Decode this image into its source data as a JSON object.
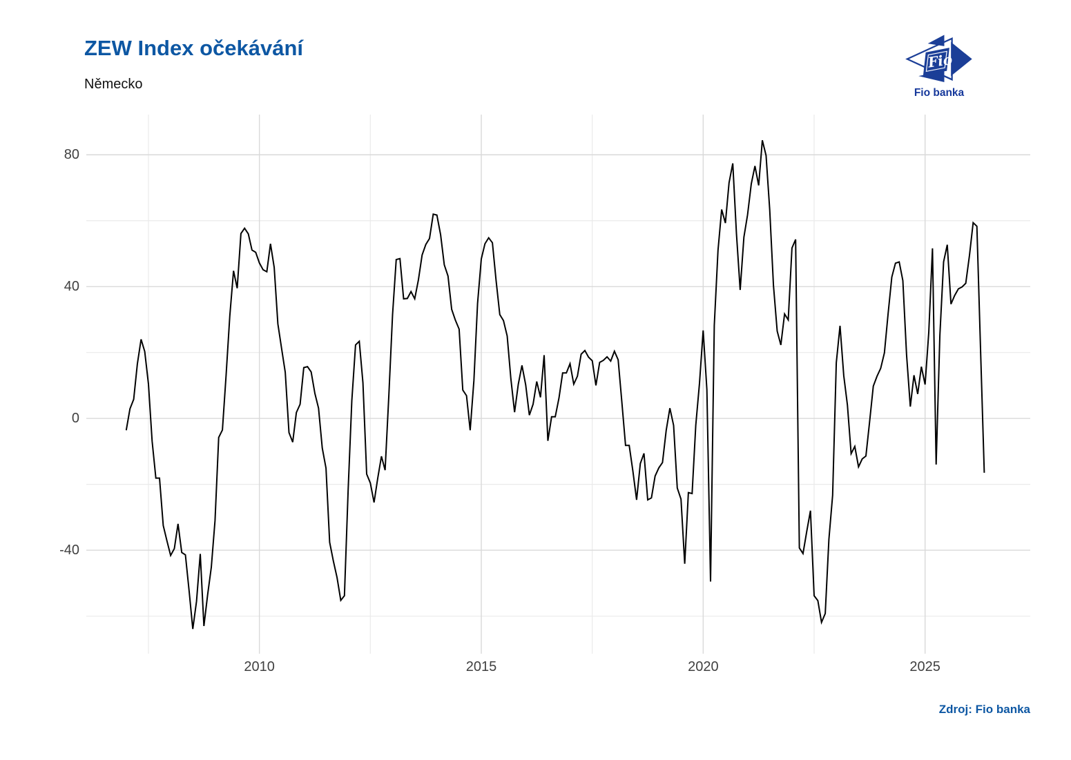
{
  "header": {
    "title": "ZEW Index očekávání",
    "subtitle": "Německo"
  },
  "logo": {
    "text": "Fio",
    "label": "Fio banka"
  },
  "footer": {
    "source": "Zdroj: Fio banka"
  },
  "colors": {
    "accent_blue": "#0d57a3",
    "logo_navy": "#1b3e97",
    "line": "#000000",
    "grid_major": "#d9d9d9",
    "grid_minor": "#eaeaea",
    "tick_text": "#404040",
    "background": "#ffffff"
  },
  "chart_data": {
    "type": "line",
    "title": "ZEW Index očekávání",
    "subtitle": "Německo",
    "xlabel": "",
    "ylabel": "",
    "grid": true,
    "legend": false,
    "xlim": [
      2006.1,
      2027.37
    ],
    "ylim": [
      -71.4,
      92.2
    ],
    "x_ticks": [
      {
        "value": 2010,
        "label": "2010"
      },
      {
        "value": 2015,
        "label": "2015"
      },
      {
        "value": 2020,
        "label": "2020"
      },
      {
        "value": 2025,
        "label": "2025"
      }
    ],
    "x_minor": [
      2007.5,
      2012.5,
      2017.5,
      2022.5
    ],
    "y_ticks": [
      {
        "value": 80,
        "label": "80"
      },
      {
        "value": 40,
        "label": "40"
      },
      {
        "value": 0,
        "label": "0"
      },
      {
        "value": -40,
        "label": "-40"
      }
    ],
    "y_minor": [
      60,
      20,
      -20,
      -60
    ],
    "series": [
      {
        "name": "ZEW Index očekávání (Německo)",
        "points": [
          [
            "2007-01",
            -3.6
          ],
          [
            "2007-02",
            2.9
          ],
          [
            "2007-03",
            5.8
          ],
          [
            "2007-04",
            16.5
          ],
          [
            "2007-05",
            24.0
          ],
          [
            "2007-06",
            20.3
          ],
          [
            "2007-07",
            10.4
          ],
          [
            "2007-08",
            -6.9
          ],
          [
            "2007-09",
            -18.1
          ],
          [
            "2007-10",
            -18.1
          ],
          [
            "2007-11",
            -32.5
          ],
          [
            "2007-12",
            -37.2
          ],
          [
            "2008-01",
            -41.6
          ],
          [
            "2008-02",
            -39.5
          ],
          [
            "2008-03",
            -32.0
          ],
          [
            "2008-04",
            -40.7
          ],
          [
            "2008-05",
            -41.4
          ],
          [
            "2008-06",
            -52.4
          ],
          [
            "2008-07",
            -63.9
          ],
          [
            "2008-08",
            -55.5
          ],
          [
            "2008-09",
            -41.1
          ],
          [
            "2008-10",
            -63.0
          ],
          [
            "2008-11",
            -53.5
          ],
          [
            "2008-12",
            -45.2
          ],
          [
            "2009-01",
            -31.0
          ],
          [
            "2009-02",
            -5.8
          ],
          [
            "2009-03",
            -3.5
          ],
          [
            "2009-04",
            13.0
          ],
          [
            "2009-05",
            31.1
          ],
          [
            "2009-06",
            44.8
          ],
          [
            "2009-07",
            39.5
          ],
          [
            "2009-08",
            56.1
          ],
          [
            "2009-09",
            57.7
          ],
          [
            "2009-10",
            56.0
          ],
          [
            "2009-11",
            51.1
          ],
          [
            "2009-12",
            50.4
          ],
          [
            "2010-01",
            47.2
          ],
          [
            "2010-02",
            45.1
          ],
          [
            "2010-03",
            44.5
          ],
          [
            "2010-04",
            53.0
          ],
          [
            "2010-05",
            45.8
          ],
          [
            "2010-06",
            28.7
          ],
          [
            "2010-07",
            21.2
          ],
          [
            "2010-08",
            14.0
          ],
          [
            "2010-09",
            -4.3
          ],
          [
            "2010-10",
            -7.2
          ],
          [
            "2010-11",
            1.8
          ],
          [
            "2010-12",
            4.3
          ],
          [
            "2011-01",
            15.4
          ],
          [
            "2011-02",
            15.7
          ],
          [
            "2011-03",
            14.1
          ],
          [
            "2011-04",
            7.6
          ],
          [
            "2011-05",
            3.1
          ],
          [
            "2011-06",
            -9.0
          ],
          [
            "2011-07",
            -15.1
          ],
          [
            "2011-08",
            -37.6
          ],
          [
            "2011-09",
            -43.3
          ],
          [
            "2011-10",
            -48.3
          ],
          [
            "2011-11",
            -55.2
          ],
          [
            "2011-12",
            -53.8
          ],
          [
            "2012-01",
            -21.6
          ],
          [
            "2012-02",
            5.4
          ],
          [
            "2012-03",
            22.3
          ],
          [
            "2012-04",
            23.4
          ],
          [
            "2012-05",
            10.8
          ],
          [
            "2012-06",
            -16.9
          ],
          [
            "2012-07",
            -19.6
          ],
          [
            "2012-08",
            -25.5
          ],
          [
            "2012-09",
            -18.2
          ],
          [
            "2012-10",
            -11.5
          ],
          [
            "2012-11",
            -15.7
          ],
          [
            "2012-12",
            6.9
          ],
          [
            "2013-01",
            31.5
          ],
          [
            "2013-02",
            48.2
          ],
          [
            "2013-03",
            48.5
          ],
          [
            "2013-04",
            36.3
          ],
          [
            "2013-05",
            36.4
          ],
          [
            "2013-06",
            38.5
          ],
          [
            "2013-07",
            36.3
          ],
          [
            "2013-08",
            42.0
          ],
          [
            "2013-09",
            49.6
          ],
          [
            "2013-10",
            52.8
          ],
          [
            "2013-11",
            54.6
          ],
          [
            "2013-12",
            62.0
          ],
          [
            "2014-01",
            61.7
          ],
          [
            "2014-02",
            55.7
          ],
          [
            "2014-03",
            46.6
          ],
          [
            "2014-04",
            43.2
          ],
          [
            "2014-05",
            33.1
          ],
          [
            "2014-06",
            29.8
          ],
          [
            "2014-07",
            27.1
          ],
          [
            "2014-08",
            8.6
          ],
          [
            "2014-09",
            6.9
          ],
          [
            "2014-10",
            -3.6
          ],
          [
            "2014-11",
            11.5
          ],
          [
            "2014-12",
            34.9
          ],
          [
            "2015-01",
            48.4
          ],
          [
            "2015-02",
            53.0
          ],
          [
            "2015-03",
            54.8
          ],
          [
            "2015-04",
            53.3
          ],
          [
            "2015-05",
            41.9
          ],
          [
            "2015-06",
            31.5
          ],
          [
            "2015-07",
            29.7
          ],
          [
            "2015-08",
            25.0
          ],
          [
            "2015-09",
            12.1
          ],
          [
            "2015-10",
            1.9
          ],
          [
            "2015-11",
            10.4
          ],
          [
            "2015-12",
            16.1
          ],
          [
            "2016-01",
            10.2
          ],
          [
            "2016-02",
            1.0
          ],
          [
            "2016-03",
            4.3
          ],
          [
            "2016-04",
            11.2
          ],
          [
            "2016-05",
            6.4
          ],
          [
            "2016-06",
            19.2
          ],
          [
            "2016-07",
            -6.8
          ],
          [
            "2016-08",
            0.5
          ],
          [
            "2016-09",
            0.5
          ],
          [
            "2016-10",
            6.2
          ],
          [
            "2016-11",
            13.8
          ],
          [
            "2016-12",
            13.8
          ],
          [
            "2017-01",
            16.6
          ],
          [
            "2017-02",
            10.4
          ],
          [
            "2017-03",
            12.8
          ],
          [
            "2017-04",
            19.5
          ],
          [
            "2017-05",
            20.6
          ],
          [
            "2017-06",
            18.6
          ],
          [
            "2017-07",
            17.5
          ],
          [
            "2017-08",
            10.0
          ],
          [
            "2017-09",
            17.0
          ],
          [
            "2017-10",
            17.6
          ],
          [
            "2017-11",
            18.7
          ],
          [
            "2017-12",
            17.4
          ],
          [
            "2018-01",
            20.4
          ],
          [
            "2018-02",
            17.8
          ],
          [
            "2018-03",
            5.1
          ],
          [
            "2018-04",
            -8.2
          ],
          [
            "2018-05",
            -8.2
          ],
          [
            "2018-06",
            -16.1
          ],
          [
            "2018-07",
            -24.7
          ],
          [
            "2018-08",
            -13.7
          ],
          [
            "2018-09",
            -10.6
          ],
          [
            "2018-10",
            -24.7
          ],
          [
            "2018-11",
            -24.1
          ],
          [
            "2018-12",
            -17.5
          ],
          [
            "2019-01",
            -15.0
          ],
          [
            "2019-02",
            -13.4
          ],
          [
            "2019-03",
            -3.6
          ],
          [
            "2019-04",
            3.1
          ],
          [
            "2019-05",
            -2.1
          ],
          [
            "2019-06",
            -21.1
          ],
          [
            "2019-07",
            -24.5
          ],
          [
            "2019-08",
            -44.1
          ],
          [
            "2019-09",
            -22.5
          ],
          [
            "2019-10",
            -22.8
          ],
          [
            "2019-11",
            -2.1
          ],
          [
            "2019-12",
            10.7
          ],
          [
            "2020-01",
            26.7
          ],
          [
            "2020-02",
            8.7
          ],
          [
            "2020-03",
            -49.5
          ],
          [
            "2020-04",
            28.2
          ],
          [
            "2020-05",
            51.0
          ],
          [
            "2020-06",
            63.4
          ],
          [
            "2020-07",
            59.3
          ],
          [
            "2020-08",
            71.5
          ],
          [
            "2020-09",
            77.4
          ],
          [
            "2020-10",
            56.1
          ],
          [
            "2020-11",
            39.0
          ],
          [
            "2020-12",
            55.0
          ],
          [
            "2021-01",
            61.8
          ],
          [
            "2021-02",
            71.2
          ],
          [
            "2021-03",
            76.6
          ],
          [
            "2021-04",
            70.7
          ],
          [
            "2021-05",
            84.4
          ],
          [
            "2021-06",
            79.8
          ],
          [
            "2021-07",
            63.3
          ],
          [
            "2021-08",
            40.4
          ],
          [
            "2021-09",
            26.5
          ],
          [
            "2021-10",
            22.3
          ],
          [
            "2021-11",
            31.7
          ],
          [
            "2021-12",
            29.9
          ],
          [
            "2022-01",
            51.7
          ],
          [
            "2022-02",
            54.3
          ],
          [
            "2022-03",
            -39.3
          ],
          [
            "2022-04",
            -41.0
          ],
          [
            "2022-05",
            -34.3
          ],
          [
            "2022-06",
            -28.0
          ],
          [
            "2022-07",
            -53.8
          ],
          [
            "2022-08",
            -55.3
          ],
          [
            "2022-09",
            -61.9
          ],
          [
            "2022-10",
            -59.2
          ],
          [
            "2022-11",
            -36.7
          ],
          [
            "2022-12",
            -23.3
          ],
          [
            "2023-01",
            16.9
          ],
          [
            "2023-02",
            28.1
          ],
          [
            "2023-03",
            13.0
          ],
          [
            "2023-04",
            4.1
          ],
          [
            "2023-05",
            -10.7
          ],
          [
            "2023-06",
            -8.5
          ],
          [
            "2023-07",
            -14.7
          ],
          [
            "2023-08",
            -12.3
          ],
          [
            "2023-09",
            -11.4
          ],
          [
            "2023-10",
            -1.1
          ],
          [
            "2023-11",
            9.8
          ],
          [
            "2023-12",
            12.8
          ],
          [
            "2024-01",
            15.2
          ],
          [
            "2024-02",
            19.9
          ],
          [
            "2024-03",
            31.7
          ],
          [
            "2024-04",
            42.9
          ],
          [
            "2024-05",
            47.1
          ],
          [
            "2024-06",
            47.5
          ],
          [
            "2024-07",
            41.8
          ],
          [
            "2024-08",
            19.2
          ],
          [
            "2024-09",
            3.6
          ],
          [
            "2024-10",
            13.1
          ],
          [
            "2024-11",
            7.4
          ],
          [
            "2024-12",
            15.7
          ],
          [
            "2025-01",
            10.3
          ],
          [
            "2025-02",
            26.0
          ],
          [
            "2025-03",
            51.6
          ],
          [
            "2025-04",
            -14.0
          ],
          [
            "2025-05",
            25.2
          ],
          [
            "2025-06",
            47.5
          ],
          [
            "2025-07",
            52.7
          ],
          [
            "2025-08",
            34.7
          ],
          [
            "2025-09",
            37.3
          ],
          [
            "2025-10",
            39.3
          ],
          [
            "2025-11",
            39.9
          ],
          [
            "2025-12",
            41.0
          ],
          [
            "2026-01",
            49.5
          ],
          [
            "2026-02",
            59.4
          ],
          [
            "2026-03",
            58.3
          ],
          [
            "2026-04",
            21.0
          ],
          [
            "2026-05",
            -16.5
          ]
        ]
      }
    ]
  }
}
